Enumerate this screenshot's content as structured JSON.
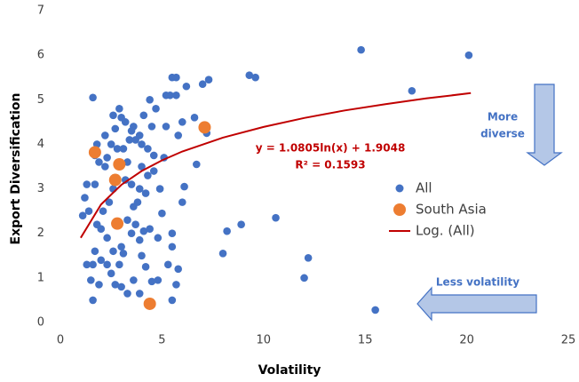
{
  "chart_data": {
    "type": "scatter",
    "x_label": "Volatility",
    "y_label": "Export Diversification",
    "xlim": [
      0,
      25
    ],
    "ylim": [
      0,
      7
    ],
    "xticks": [
      0,
      5,
      10,
      15,
      20,
      25
    ],
    "yticks": [
      0,
      1,
      2,
      3,
      4,
      5,
      6,
      7
    ],
    "legend": "right",
    "annotations": {
      "diverse": [
        "More",
        "diverse"
      ],
      "volatility": "Less volatility",
      "equation": "y = 1.0805ln(x) + 1.9048",
      "r2": "R² = 0.1593"
    },
    "series": [
      {
        "name": "All",
        "color": "#4472c4",
        "x": [
          14.8,
          20.1,
          17.3,
          9.3,
          9.6,
          10.6,
          12.2,
          12.0,
          15.5,
          8.9,
          8.2,
          8.0,
          7.2,
          7.0,
          7.3,
          6.6,
          6.7,
          6.1,
          6.0,
          6.2,
          5.5,
          5.7,
          5.4,
          5.7,
          5.2,
          6.0,
          5.8,
          5.5,
          5.5,
          5.8,
          5.7,
          5.5,
          5.3,
          5.0,
          4.9,
          4.6,
          4.5,
          4.4,
          4.8,
          4.5,
          4.2,
          4.0,
          3.9,
          4.1,
          3.7,
          3.5,
          3.6,
          3.8,
          4.2,
          4.3,
          4.0,
          3.5,
          3.3,
          3.1,
          3.4,
          3.7,
          3.9,
          3.6,
          4.1,
          3.2,
          3.0,
          2.6,
          2.7,
          2.5,
          2.3,
          2.2,
          2.6,
          2.4,
          2.1,
          2.0,
          2.3,
          2.6,
          2.5,
          2.7,
          3.0,
          3.3,
          3.6,
          3.9,
          2.9,
          3.0,
          2.0,
          1.7,
          1.6,
          1.3,
          1.5,
          1.6,
          1.4,
          1.2,
          1.1,
          1.3,
          1.7,
          1.9,
          1.8,
          1.7,
          1.6,
          2.2,
          2.9,
          3.5,
          4.0,
          4.3,
          4.6,
          3.2,
          2.8,
          3.3,
          3.1,
          2.3,
          1.9,
          1.8,
          3.9,
          4.7,
          5.1,
          5.2,
          4.8,
          4.4
        ],
        "values": [
          6.12,
          6.0,
          5.2,
          5.55,
          5.5,
          2.35,
          1.45,
          1.0,
          0.28,
          2.2,
          2.05,
          1.55,
          4.25,
          5.35,
          5.45,
          4.6,
          3.55,
          3.05,
          2.7,
          5.3,
          5.5,
          5.5,
          5.1,
          5.1,
          5.1,
          4.5,
          4.2,
          2.0,
          1.7,
          1.2,
          0.85,
          0.5,
          1.3,
          2.45,
          3.0,
          3.75,
          4.4,
          5.0,
          0.95,
          0.92,
          1.25,
          1.5,
          1.85,
          2.05,
          2.2,
          2.0,
          2.6,
          2.7,
          2.9,
          3.3,
          3.5,
          3.1,
          3.6,
          3.9,
          4.1,
          4.1,
          4.2,
          4.4,
          4.65,
          4.5,
          4.6,
          4.65,
          4.35,
          4.0,
          3.7,
          3.5,
          3.0,
          2.7,
          2.5,
          2.1,
          1.9,
          1.6,
          1.1,
          0.85,
          0.8,
          0.65,
          0.95,
          0.65,
          1.3,
          1.7,
          1.4,
          1.6,
          1.3,
          1.3,
          0.95,
          0.5,
          2.5,
          2.8,
          2.4,
          3.1,
          3.1,
          3.6,
          4.0,
          3.75,
          5.05,
          4.2,
          4.8,
          4.3,
          4.0,
          3.9,
          3.4,
          3.2,
          3.9,
          2.3,
          1.55,
          1.3,
          0.85,
          2.2,
          3.0,
          4.8,
          3.7,
          4.4,
          1.9,
          2.1
        ]
      },
      {
        "name": "South Asia",
        "color": "#ed7d31",
        "x": [
          1.7,
          2.7,
          2.9,
          2.8,
          4.4,
          7.1
        ],
        "values": [
          3.82,
          3.2,
          3.55,
          2.22,
          0.42,
          4.38
        ]
      },
      {
        "name": "Log. (All)",
        "color": "#c00000",
        "type": "line",
        "x": [
          1,
          2,
          3,
          4,
          5,
          6,
          8,
          10,
          12,
          14,
          16,
          18,
          20.2
        ],
        "values": [
          1.9,
          2.65,
          3.09,
          3.4,
          3.64,
          3.84,
          4.15,
          4.39,
          4.59,
          4.76,
          4.9,
          5.03,
          5.15
        ]
      }
    ]
  }
}
